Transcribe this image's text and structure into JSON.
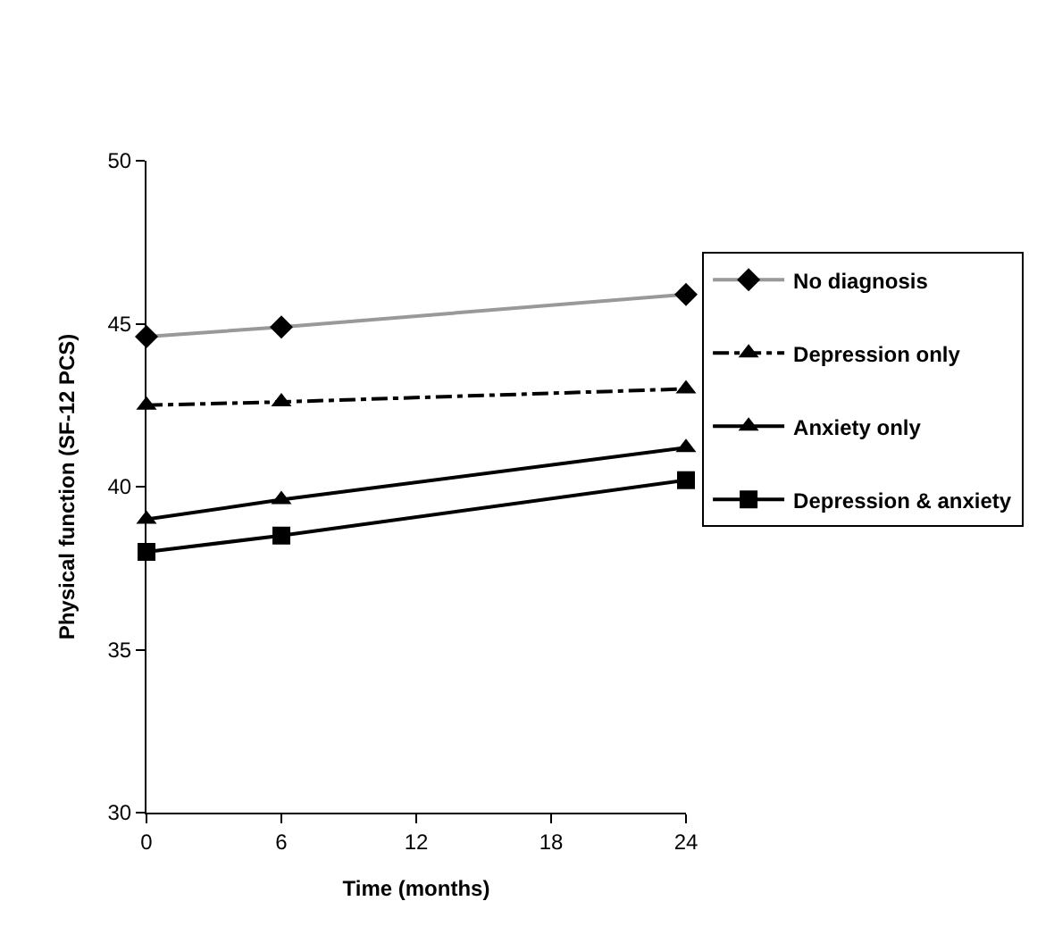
{
  "chart_data": {
    "type": "line",
    "xlabel": "Time (months)",
    "ylabel": "Physical function (SF-12 PCS)",
    "x": [
      0,
      6,
      24
    ],
    "xlim": [
      0,
      24
    ],
    "xticks": [
      0,
      6,
      12,
      18,
      24
    ],
    "ylim": [
      30,
      50
    ],
    "yticks": [
      30,
      35,
      40,
      45,
      50
    ],
    "legend": "right",
    "series": [
      {
        "name": "No diagnosis",
        "color": "#999999",
        "marker": "diamond",
        "line_style": "solid",
        "values": [
          44.6,
          44.9,
          45.9
        ]
      },
      {
        "name": "Depression only",
        "color": "#000000",
        "marker": "triangle",
        "line_style": "dashed",
        "values": [
          42.5,
          42.6,
          43.0
        ]
      },
      {
        "name": "Anxiety only",
        "color": "#000000",
        "marker": "triangle",
        "line_style": "solid",
        "values": [
          39.0,
          39.6,
          41.2
        ]
      },
      {
        "name": "Depression & anxiety",
        "color": "#000000",
        "marker": "square",
        "line_style": "solid",
        "values": [
          38.0,
          38.5,
          40.2
        ]
      }
    ]
  }
}
